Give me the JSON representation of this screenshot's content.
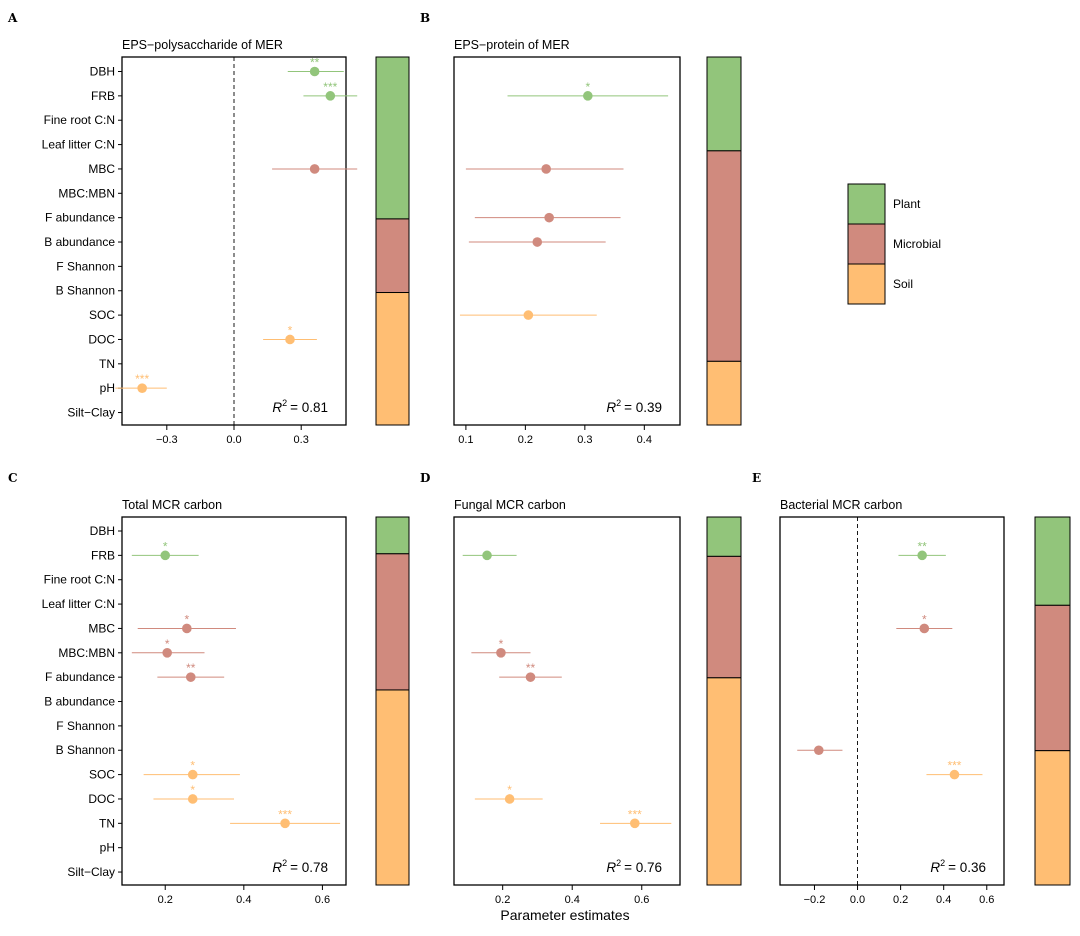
{
  "figure": {
    "xaxis_title": "Parameter estimates",
    "variables": [
      "DBH",
      "FRB",
      "Fine root C:N",
      "Leaf litter C:N",
      "MBC",
      "MBC:MBN",
      "F abundance",
      "B abundance",
      "F Shannon",
      "B Shannon",
      "SOC",
      "DOC",
      "TN",
      "pH",
      "Silt−Clay"
    ]
  },
  "colors": {
    "Plant": "#92c57b",
    "Microbial": "#d08a7e",
    "Soil": "#ffbe73"
  },
  "legend": {
    "items": [
      {
        "name": "Plant",
        "label": "Plant",
        "color": "#92c57b"
      },
      {
        "name": "Microbial",
        "label": "Microbial",
        "color": "#d08a7e"
      },
      {
        "name": "Soil",
        "label": "Soil",
        "color": "#ffbe73"
      }
    ]
  },
  "chart_data": [
    {
      "type": "forest",
      "letter": "A",
      "title": "EPS−polysaccharide of MER",
      "xlim": [
        -0.5,
        0.5
      ],
      "xticks": [
        -0.3,
        0.0,
        0.3
      ],
      "tick_labels": [
        "−0.3",
        "0.0",
        "0.3"
      ],
      "zero_line": true,
      "r2_label": "R",
      "r2_sup": "2",
      "r2_value": "= 0.81",
      "points": [
        {
          "variable": "DBH",
          "group": "Plant",
          "estimate": 0.36,
          "low": 0.24,
          "high": 0.49,
          "sig": "**"
        },
        {
          "variable": "FRB",
          "group": "Plant",
          "estimate": 0.43,
          "low": 0.31,
          "high": 0.55,
          "sig": "***"
        },
        {
          "variable": "MBC",
          "group": "Microbial",
          "estimate": 0.36,
          "low": 0.17,
          "high": 0.55,
          "sig": ""
        },
        {
          "variable": "DOC",
          "group": "Soil",
          "estimate": 0.25,
          "low": 0.13,
          "high": 0.37,
          "sig": "*"
        },
        {
          "variable": "pH",
          "group": "Soil",
          "estimate": -0.41,
          "low": -0.53,
          "high": -0.3,
          "sig": "***"
        }
      ],
      "composition": [
        {
          "group": "Plant",
          "fraction": 0.44
        },
        {
          "group": "Microbial",
          "fraction": 0.2
        },
        {
          "group": "Soil",
          "fraction": 0.36
        }
      ]
    },
    {
      "type": "forest",
      "letter": "B",
      "title": "EPS−protein of MER",
      "xlim": [
        0.08,
        0.46
      ],
      "xticks": [
        0.1,
        0.2,
        0.3,
        0.4
      ],
      "tick_labels": [
        "0.1",
        "0.2",
        "0.3",
        "0.4"
      ],
      "zero_line": false,
      "r2_label": "R",
      "r2_sup": "2",
      "r2_value": "= 0.39",
      "points": [
        {
          "variable": "FRB",
          "group": "Plant",
          "estimate": 0.305,
          "low": 0.17,
          "high": 0.44,
          "sig": "*"
        },
        {
          "variable": "MBC",
          "group": "Microbial",
          "estimate": 0.235,
          "low": 0.1,
          "high": 0.365,
          "sig": ""
        },
        {
          "variable": "F abundance",
          "group": "Microbial",
          "estimate": 0.24,
          "low": 0.115,
          "high": 0.36,
          "sig": ""
        },
        {
          "variable": "B abundance",
          "group": "Microbial",
          "estimate": 0.22,
          "low": 0.105,
          "high": 0.335,
          "sig": ""
        },
        {
          "variable": "SOC",
          "group": "Soil",
          "estimate": 0.205,
          "low": 0.09,
          "high": 0.32,
          "sig": ""
        }
      ],
      "composition": [
        {
          "group": "Plant",
          "fraction": 0.255
        },
        {
          "group": "Microbial",
          "fraction": 0.572
        },
        {
          "group": "Soil",
          "fraction": 0.173
        }
      ]
    },
    {
      "type": "forest",
      "letter": "C",
      "title": "Total MCR carbon",
      "xlim": [
        0.09,
        0.66
      ],
      "xticks": [
        0.2,
        0.4,
        0.6
      ],
      "tick_labels": [
        "0.2",
        "0.4",
        "0.6"
      ],
      "zero_line": false,
      "r2_label": "R",
      "r2_sup": "2",
      "r2_value": "= 0.78",
      "points": [
        {
          "variable": "FRB",
          "group": "Plant",
          "estimate": 0.2,
          "low": 0.115,
          "high": 0.285,
          "sig": "*"
        },
        {
          "variable": "MBC",
          "group": "Microbial",
          "estimate": 0.255,
          "low": 0.13,
          "high": 0.38,
          "sig": "*"
        },
        {
          "variable": "MBC:MBN",
          "group": "Microbial",
          "estimate": 0.205,
          "low": 0.115,
          "high": 0.3,
          "sig": "*"
        },
        {
          "variable": "F abundance",
          "group": "Microbial",
          "estimate": 0.265,
          "low": 0.18,
          "high": 0.35,
          "sig": "**"
        },
        {
          "variable": "SOC",
          "group": "Soil",
          "estimate": 0.27,
          "low": 0.145,
          "high": 0.39,
          "sig": "*"
        },
        {
          "variable": "DOC",
          "group": "Soil",
          "estimate": 0.27,
          "low": 0.17,
          "high": 0.375,
          "sig": "*"
        },
        {
          "variable": "TN",
          "group": "Soil",
          "estimate": 0.505,
          "low": 0.365,
          "high": 0.645,
          "sig": "***"
        }
      ],
      "composition": [
        {
          "group": "Plant",
          "fraction": 0.1
        },
        {
          "group": "Microbial",
          "fraction": 0.37
        },
        {
          "group": "Soil",
          "fraction": 0.53
        }
      ]
    },
    {
      "type": "forest",
      "letter": "D",
      "title": "Fungal MCR carbon",
      "xlim": [
        0.06,
        0.71
      ],
      "xticks": [
        0.2,
        0.4,
        0.6
      ],
      "tick_labels": [
        "0.2",
        "0.4",
        "0.6"
      ],
      "zero_line": false,
      "r2_label": "R",
      "r2_sup": "2",
      "r2_value": "= 0.76",
      "points": [
        {
          "variable": "FRB",
          "group": "Plant",
          "estimate": 0.155,
          "low": 0.085,
          "high": 0.24,
          "sig": ""
        },
        {
          "variable": "MBC:MBN",
          "group": "Microbial",
          "estimate": 0.195,
          "low": 0.11,
          "high": 0.28,
          "sig": "*"
        },
        {
          "variable": "F abundance",
          "group": "Microbial",
          "estimate": 0.28,
          "low": 0.19,
          "high": 0.37,
          "sig": "**"
        },
        {
          "variable": "DOC",
          "group": "Soil",
          "estimate": 0.22,
          "low": 0.12,
          "high": 0.315,
          "sig": "*"
        },
        {
          "variable": "TN",
          "group": "Soil",
          "estimate": 0.58,
          "low": 0.48,
          "high": 0.685,
          "sig": "***"
        }
      ],
      "composition": [
        {
          "group": "Plant",
          "fraction": 0.107
        },
        {
          "group": "Microbial",
          "fraction": 0.33
        },
        {
          "group": "Soil",
          "fraction": 0.563
        }
      ]
    },
    {
      "type": "forest",
      "letter": "E",
      "title": "Bacterial MCR carbon",
      "xlim": [
        -0.36,
        0.68
      ],
      "xticks": [
        -0.2,
        0.0,
        0.2,
        0.4,
        0.6
      ],
      "tick_labels": [
        "−0.2",
        "0.0",
        "0.2",
        "0.4",
        "0.6"
      ],
      "zero_line": true,
      "r2_label": "R",
      "r2_sup": "2",
      "r2_value": "= 0.36",
      "points": [
        {
          "variable": "FRB",
          "group": "Plant",
          "estimate": 0.3,
          "low": 0.19,
          "high": 0.41,
          "sig": "**"
        },
        {
          "variable": "MBC",
          "group": "Microbial",
          "estimate": 0.31,
          "low": 0.18,
          "high": 0.44,
          "sig": "*"
        },
        {
          "variable": "B Shannon",
          "group": "Microbial",
          "estimate": -0.18,
          "low": -0.28,
          "high": -0.07,
          "sig": ""
        },
        {
          "variable": "SOC",
          "group": "Soil",
          "estimate": 0.45,
          "low": 0.32,
          "high": 0.58,
          "sig": "***"
        }
      ],
      "composition": [
        {
          "group": "Plant",
          "fraction": 0.24
        },
        {
          "group": "Microbial",
          "fraction": 0.395
        },
        {
          "group": "Soil",
          "fraction": 0.365
        }
      ]
    }
  ]
}
